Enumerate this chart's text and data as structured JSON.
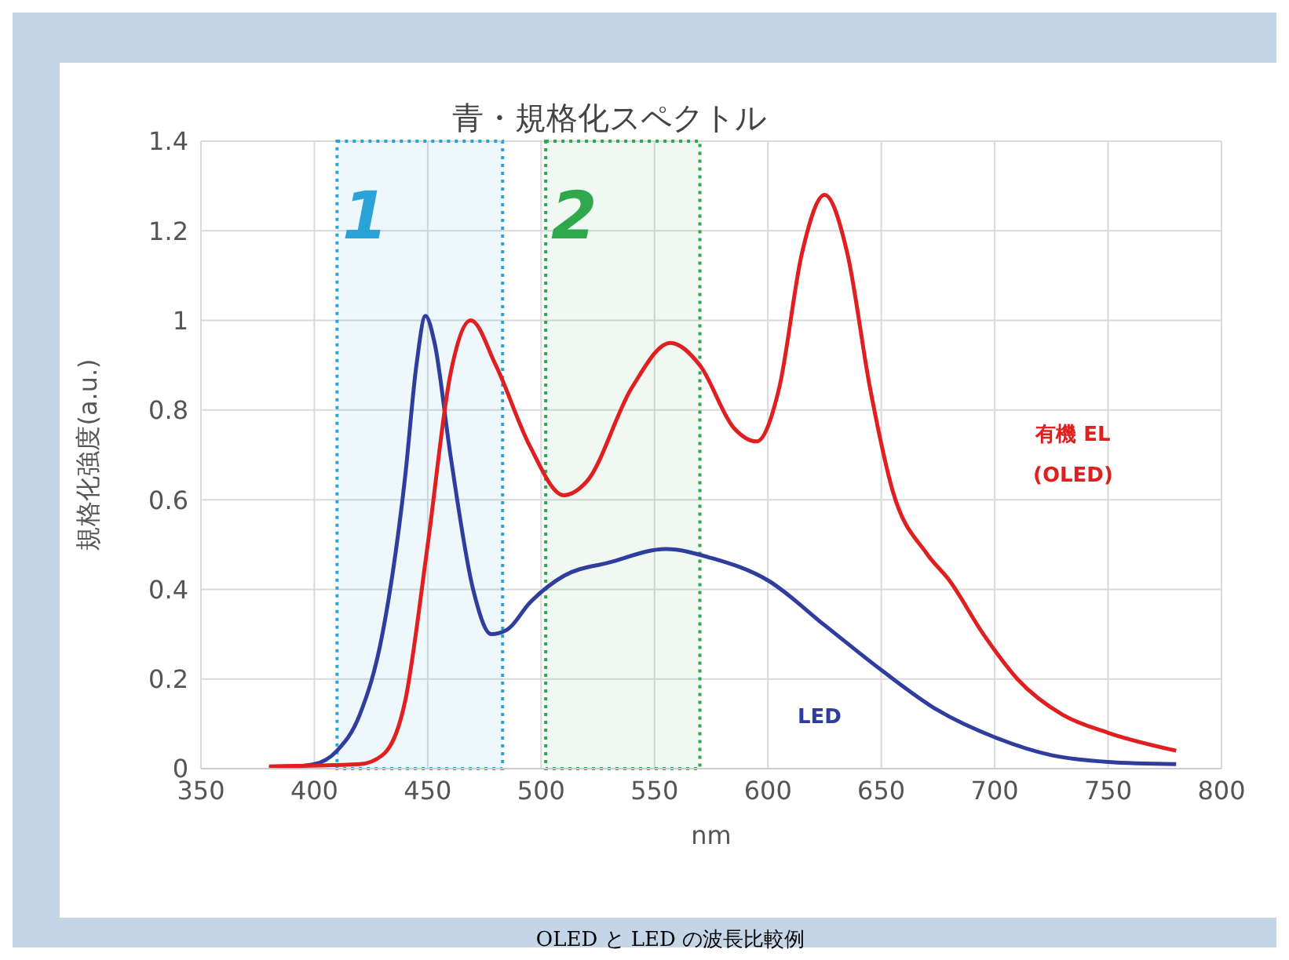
{
  "chart_data": {
    "type": "line",
    "title": "青・規格化スペクトル",
    "xlabel": "nm",
    "ylabel": "規格化強度(a.u.)",
    "series": [
      {
        "color": "#2e3d9e",
        "x": [
          380,
          400,
          410,
          420,
          430,
          440,
          445,
          449,
          453,
          460,
          470,
          478,
          485,
          495,
          510,
          530,
          555,
          575,
          600,
          625,
          650,
          675,
          700,
          725,
          750,
          780
        ],
        "values": [
          0.0,
          0.01,
          0.04,
          0.12,
          0.3,
          0.65,
          0.9,
          1.01,
          0.95,
          0.7,
          0.4,
          0.3,
          0.31,
          0.37,
          0.43,
          0.46,
          0.49,
          0.47,
          0.42,
          0.32,
          0.22,
          0.13,
          0.07,
          0.03,
          0.015,
          0.01
        ]
      },
      {
        "color": "#e02020",
        "x": [
          380,
          420,
          430,
          440,
          450,
          460,
          469,
          480,
          495,
          510,
          520,
          540,
          557,
          570,
          585,
          595,
          605,
          615,
          625,
          635,
          645,
          655,
          670,
          680,
          695,
          710,
          730,
          750,
          780
        ],
        "values": [
          0.005,
          0.01,
          0.03,
          0.15,
          0.5,
          0.88,
          1.0,
          0.9,
          0.72,
          0.61,
          0.64,
          0.85,
          0.95,
          0.9,
          0.76,
          0.73,
          0.85,
          1.15,
          1.28,
          1.15,
          0.85,
          0.62,
          0.48,
          0.42,
          0.3,
          0.2,
          0.12,
          0.08,
          0.04
        ]
      }
    ],
    "xlim": [
      350,
      800
    ],
    "xticks": [
      350,
      400,
      450,
      500,
      550,
      600,
      650,
      700,
      750,
      800
    ],
    "ylim": [
      0,
      1.4
    ],
    "yticks": [
      0,
      0.2,
      0.4,
      0.6,
      0.8,
      1,
      1.2,
      1.4
    ],
    "grid": true,
    "legend": false,
    "marker": "none",
    "line_style": "solid",
    "bands": [
      {
        "axis": "x",
        "from": 410,
        "to": 483,
        "label": "1",
        "color": "#29a3d8"
      },
      {
        "axis": "x",
        "from": 502,
        "to": 570,
        "label": "2",
        "color": "#2ea84a"
      }
    ],
    "annotations": [
      "有機 EL\n(OLED)",
      "LED",
      "OLED と LED の波長比較例"
    ]
  }
}
